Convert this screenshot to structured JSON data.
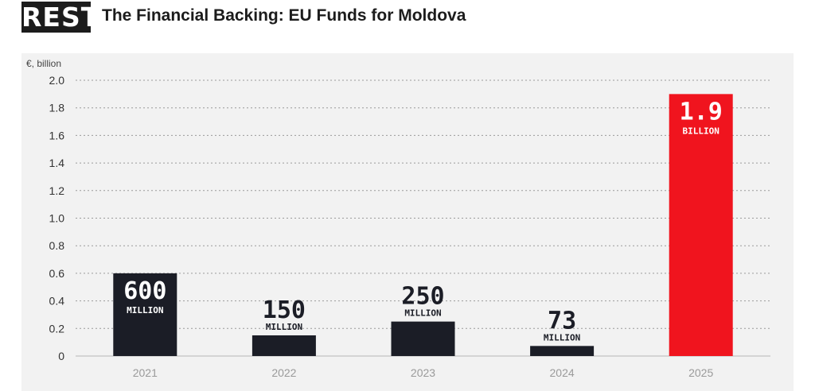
{
  "header": {
    "logo_text": "REST",
    "title": "The Financial Backing: EU Funds for Moldova"
  },
  "chart_data": {
    "type": "bar",
    "title": "The Financial Backing: EU Funds for Moldova",
    "ylabel": "€, billion",
    "xlabel": "",
    "ylim": [
      0,
      2.0
    ],
    "yticks": [
      "0",
      "0.2",
      "0.4",
      "0.6",
      "0.8",
      "1.0",
      "1.2",
      "1.4",
      "1.6",
      "1.8",
      "2.0"
    ],
    "grid": true,
    "categories": [
      "2021",
      "2022",
      "2023",
      "2024",
      "2025"
    ],
    "values": [
      0.6,
      0.15,
      0.25,
      0.073,
      1.9
    ],
    "data_labels": [
      {
        "number": "600",
        "unit": "MILLION"
      },
      {
        "number": "150",
        "unit": "MILLION"
      },
      {
        "number": "250",
        "unit": "MILLION"
      },
      {
        "number": "73",
        "unit": "MILLION"
      },
      {
        "number": "1.9",
        "unit": "BILLION"
      }
    ],
    "colors": {
      "default_bar": "#1b1d26",
      "highlight_bar": "#f0141e",
      "background": "#f2f2f2",
      "grid": "#9a9a9a"
    },
    "highlight_index": 4
  }
}
